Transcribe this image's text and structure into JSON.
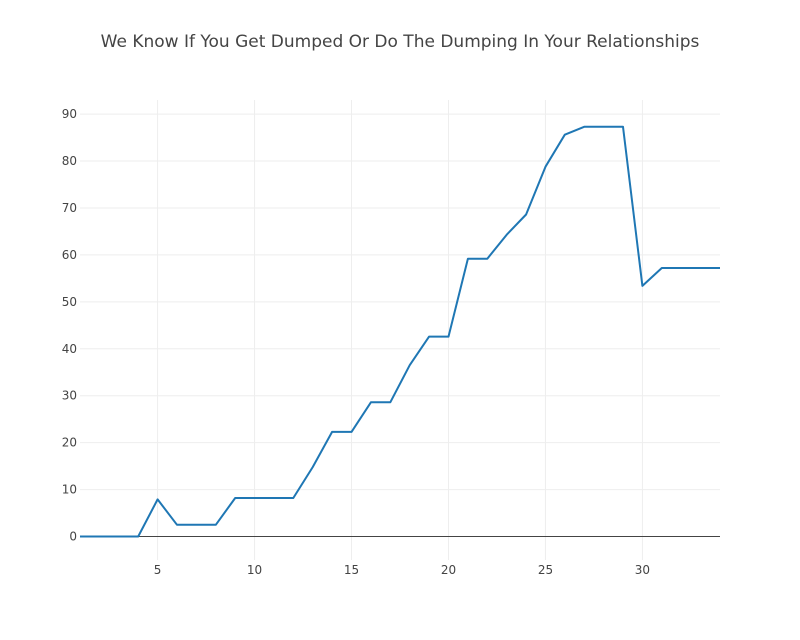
{
  "chart_data": {
    "type": "line",
    "title": "We Know If You Get Dumped Or Do The Dumping In Your Relationships",
    "xlabel": "",
    "ylabel": "",
    "xlim": [
      1,
      34
    ],
    "ylim": [
      -5,
      93
    ],
    "x_ticks": [
      5,
      10,
      15,
      20,
      25,
      30
    ],
    "y_ticks": [
      0,
      10,
      20,
      30,
      40,
      50,
      60,
      70,
      80,
      90
    ],
    "grid": true,
    "series": [
      {
        "color": "#1f77b4",
        "x": [
          1,
          2,
          3,
          4,
          5,
          6,
          7,
          8,
          9,
          10,
          11,
          12,
          13,
          14,
          15,
          16,
          17,
          18,
          19,
          20,
          21,
          22,
          23,
          24,
          25,
          26,
          27,
          28,
          29,
          30,
          31,
          32,
          33,
          34
        ],
        "y": [
          0,
          0,
          0,
          0,
          7.9,
          2.5,
          2.5,
          2.5,
          8.2,
          8.2,
          8.2,
          8.2,
          14.8,
          22.3,
          22.3,
          28.6,
          28.6,
          36.5,
          42.6,
          42.6,
          59.2,
          59.2,
          64.3,
          68.6,
          78.8,
          85.6,
          87.3,
          87.3,
          87.3,
          53.4,
          57.2,
          57.2,
          57.2,
          57.2
        ]
      }
    ]
  }
}
